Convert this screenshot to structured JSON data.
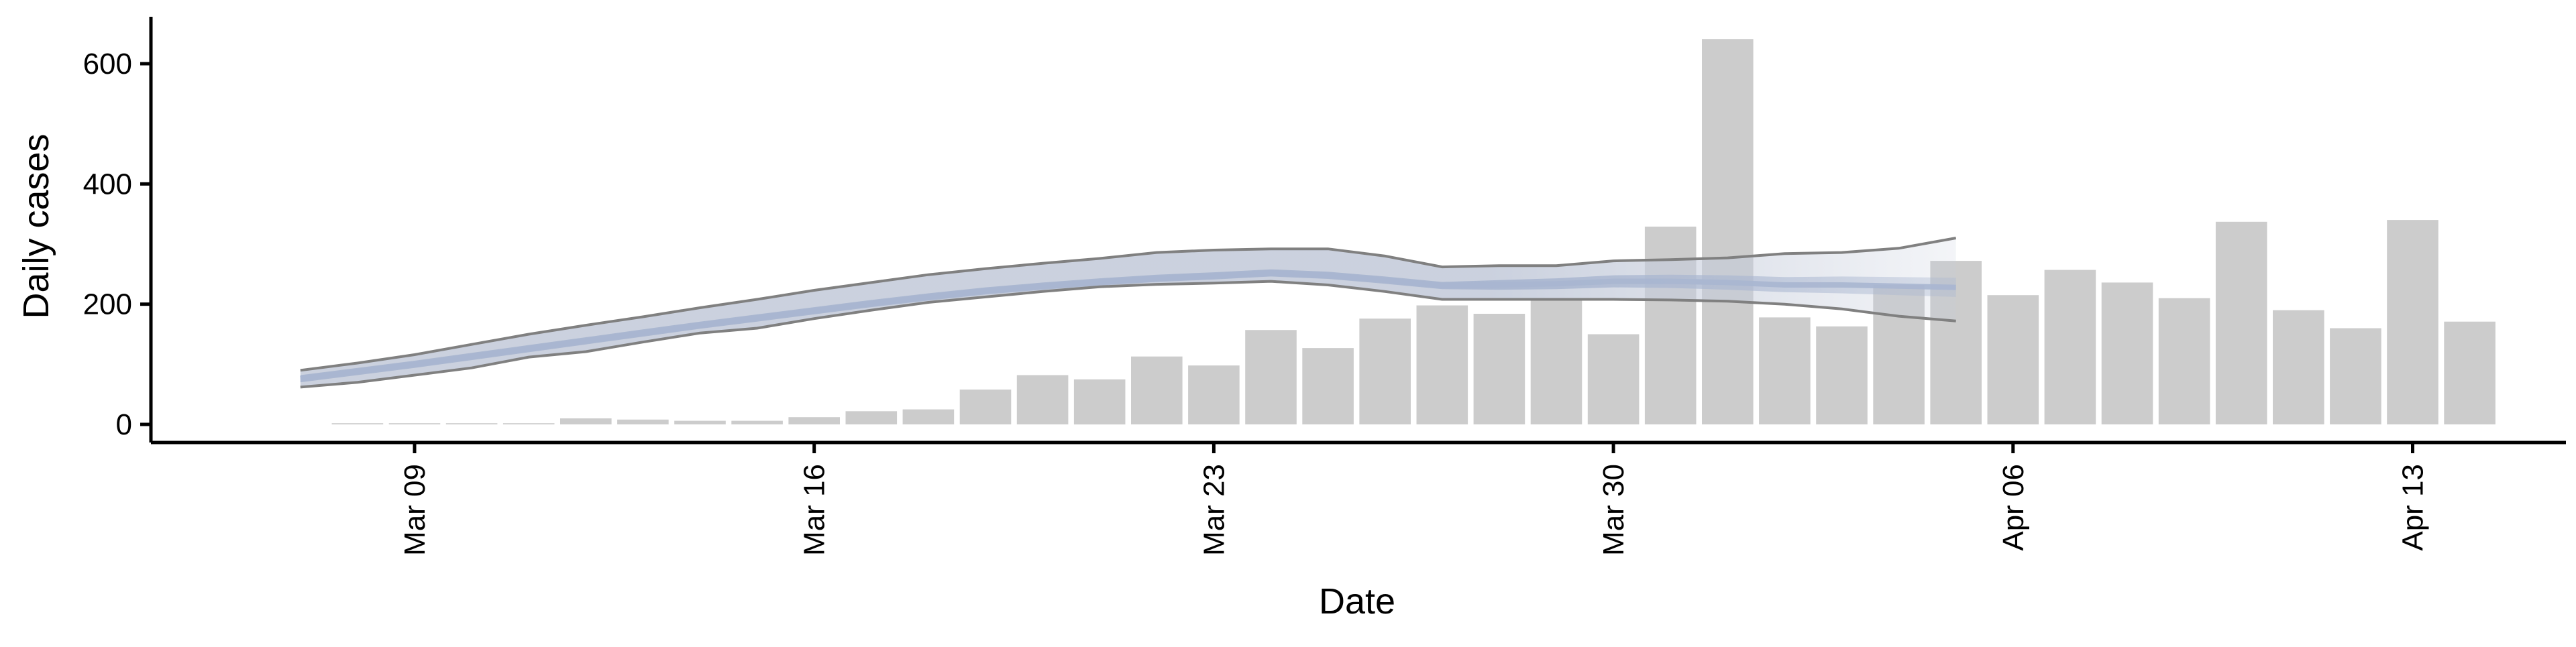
{
  "chart_data": {
    "type": "bar",
    "xlabel": "Date",
    "ylabel": "Daily cases",
    "x_tick_labels": [
      "Mar 09",
      "Mar 16",
      "Mar 23",
      "Mar 30",
      "Apr 06",
      "Apr 13"
    ],
    "x_tick_dates": [
      "2020-03-09",
      "2020-03-16",
      "2020-03-23",
      "2020-03-30",
      "2020-04-06",
      "2020-04-13"
    ],
    "y_ticks": [
      0,
      200,
      400,
      600
    ],
    "ylim": [
      -30,
      670
    ],
    "xlim": [
      "2020-03-02",
      "2020-04-16"
    ],
    "grid": false,
    "legend": "none",
    "colors": {
      "bars": "#cccccc",
      "band_outer": "#c5ccdb",
      "band_inner": "#a9b6d0",
      "band_edge": "#808080"
    },
    "series": [
      {
        "type": "bar",
        "dates": [
          "2020-03-08",
          "2020-03-09",
          "2020-03-10",
          "2020-03-11",
          "2020-03-12",
          "2020-03-13",
          "2020-03-14",
          "2020-03-15",
          "2020-03-16",
          "2020-03-17",
          "2020-03-18",
          "2020-03-19",
          "2020-03-20",
          "2020-03-21",
          "2020-03-22",
          "2020-03-23",
          "2020-03-24",
          "2020-03-25",
          "2020-03-26",
          "2020-03-27",
          "2020-03-28",
          "2020-03-29",
          "2020-03-30",
          "2020-03-31",
          "2020-04-01",
          "2020-04-02",
          "2020-04-03",
          "2020-04-04",
          "2020-04-05",
          "2020-04-06",
          "2020-04-07",
          "2020-04-08",
          "2020-04-09",
          "2020-04-10",
          "2020-04-11",
          "2020-04-12",
          "2020-04-13",
          "2020-04-14"
        ],
        "values": [
          2,
          2,
          2,
          2,
          10,
          8,
          6,
          6,
          12,
          22,
          25,
          58,
          82,
          75,
          113,
          98,
          157,
          127,
          176,
          198,
          184,
          206,
          150,
          329,
          641,
          178,
          163,
          232,
          272,
          215,
          257,
          236,
          210,
          337,
          190,
          160,
          340,
          171
        ]
      },
      {
        "type": "band",
        "dates": [
          "2020-03-07",
          "2020-03-08",
          "2020-03-09",
          "2020-03-10",
          "2020-03-11",
          "2020-03-12",
          "2020-03-13",
          "2020-03-14",
          "2020-03-15",
          "2020-03-16",
          "2020-03-17",
          "2020-03-18",
          "2020-03-19",
          "2020-03-20",
          "2020-03-21",
          "2020-03-22",
          "2020-03-23",
          "2020-03-24",
          "2020-03-25",
          "2020-03-26",
          "2020-03-27",
          "2020-03-28",
          "2020-03-29",
          "2020-03-30",
          "2020-03-31",
          "2020-04-01",
          "2020-04-02",
          "2020-04-03",
          "2020-04-04",
          "2020-04-05"
        ],
        "median": [
          76,
          88,
          100,
          113,
          126,
          139,
          152,
          165,
          177,
          189,
          201,
          212,
          222,
          230,
          237,
          243,
          247,
          252,
          248,
          240,
          231,
          232,
          234,
          238,
          238,
          236,
          232,
          232,
          230,
          228
        ],
        "inner_lower": [
          70,
          82,
          94,
          107,
          120,
          133,
          146,
          159,
          171,
          183,
          195,
          206,
          216,
          224,
          231,
          237,
          241,
          246,
          242,
          234,
          225,
          224,
          225,
          228,
          227,
          224,
          220,
          218,
          215,
          212
        ],
        "inner_upper": [
          82,
          94,
          106,
          119,
          132,
          145,
          158,
          171,
          183,
          195,
          207,
          218,
          228,
          236,
          243,
          249,
          253,
          258,
          254,
          246,
          237,
          240,
          243,
          248,
          249,
          248,
          245,
          246,
          245,
          244
        ],
        "lower": [
          62,
          70,
          82,
          94,
          112,
          121,
          137,
          152,
          160,
          176,
          190,
          203,
          212,
          221,
          229,
          233,
          235,
          238,
          232,
          221,
          208,
          208,
          208,
          208,
          207,
          205,
          200,
          192,
          180,
          172
        ],
        "upper": [
          90,
          102,
          116,
          133,
          150,
          165,
          179,
          194,
          208,
          223,
          236,
          249,
          259,
          268,
          276,
          286,
          290,
          292,
          292,
          280,
          262,
          264,
          264,
          272,
          274,
          277,
          284,
          286,
          293,
          310
        ]
      }
    ]
  }
}
